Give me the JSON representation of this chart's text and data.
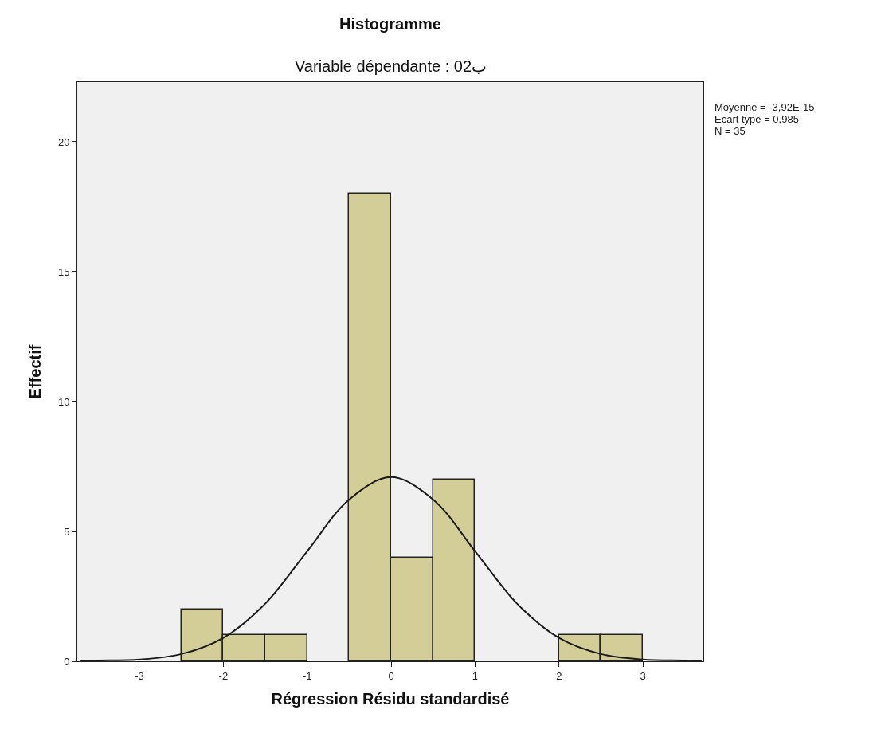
{
  "chart_data": {
    "type": "histogram",
    "title": "Histogramme",
    "subtitle": "Variable dépendante : ب02",
    "xlabel": "Régression Résidu standardisé",
    "ylabel": "Effectif",
    "bins": [
      -2.5,
      -2,
      -1.5,
      -1,
      -0.5,
      0,
      0.5,
      1,
      1.5,
      2,
      2.5,
      3
    ],
    "values": [
      2,
      1,
      1,
      0,
      18,
      4,
      7,
      0,
      0,
      1,
      1
    ],
    "color": "#d3ce97",
    "series": [
      {
        "type": "line",
        "color": "#1a1a1a",
        "x": [
          -3.7,
          -3.5,
          -3,
          -2.5,
          -2,
          -1.5,
          -1,
          -0.5,
          0,
          0.5,
          1,
          1.5,
          2,
          2.5,
          3,
          3.5,
          3.7
        ],
        "values": [
          0.01,
          0.03,
          0.07,
          0.28,
          0.9,
          2.22,
          4.24,
          6.23,
          7.09,
          6.23,
          4.24,
          2.22,
          0.9,
          0.28,
          0.07,
          0.03,
          0.01
        ]
      }
    ],
    "xlim": [
      -3.74,
      3.72
    ],
    "ylim": [
      0,
      22.3
    ],
    "xticks": [
      -3,
      -2,
      -1,
      0,
      1,
      2,
      3
    ],
    "yticks": [
      0,
      5,
      10,
      15,
      20
    ],
    "grid": false,
    "marker": "none",
    "line_style": "solid",
    "annotations": [
      "Moyenne = -3,92E-15",
      "Ecart type = 0,985",
      "N = 35"
    ]
  }
}
